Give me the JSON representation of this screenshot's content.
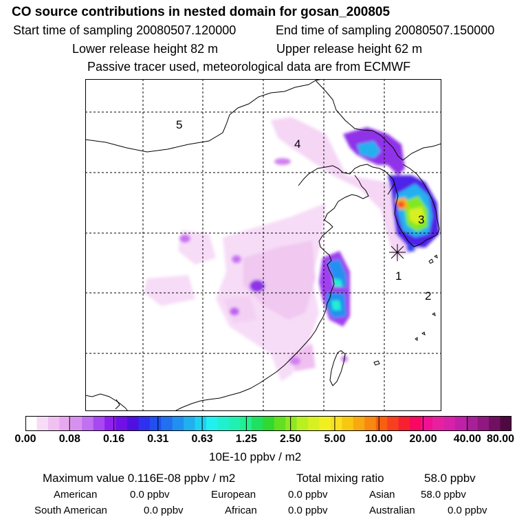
{
  "header": {
    "title": "CO  source contributions in nested domain for gosan_200805",
    "start_time": "Start time of sampling 20080507.120000",
    "end_time": "End time of sampling 20080507.150000",
    "lower_height": "Lower release height   82 m",
    "upper_height": "Upper release height   62 m",
    "note": "Passive tracer used, meteorological data are from ECMWF"
  },
  "map": {
    "region_labels": [
      "5",
      "4",
      "3",
      "1",
      "2"
    ],
    "receptor_marker": "asterisk-star"
  },
  "colorbar": {
    "ticks": [
      "0.00",
      "0.08",
      "0.16",
      "0.31",
      "0.63",
      "1.25",
      "2.50",
      "5.00",
      "10.00",
      "20.00",
      "40.00",
      "80.00"
    ],
    "units": "10E-10 ppbv / m2",
    "colors": [
      "#ffffff",
      "#f7dcf7",
      "#f0c0f0",
      "#e8a8f0",
      "#d890f0",
      "#c070f0",
      "#a848f0",
      "#9020f0",
      "#7010e8",
      "#5010e0",
      "#3030f0",
      "#2050f0",
      "#2070f0",
      "#2090f0",
      "#20b0f0",
      "#20d0f0",
      "#20f0f0",
      "#20f0d0",
      "#20f0b0",
      "#20f090",
      "#20e060",
      "#30d830",
      "#60e020",
      "#90e820",
      "#b8f020",
      "#d8f020",
      "#f0f020",
      "#f8e020",
      "#f8c810",
      "#f8a810",
      "#f88810",
      "#f86010",
      "#f84020",
      "#f82030",
      "#f80860",
      "#f01090",
      "#e820a0",
      "#d820a8",
      "#c020a8",
      "#a82098",
      "#901880",
      "#701060",
      "#500840"
    ]
  },
  "footer": {
    "max_label": "Maximum value  0.116E-08 ppbv / m2",
    "total_label": "Total mixing ratio",
    "total_value": "58.0 ppbv",
    "american_label": "American",
    "american_value": "0.0 ppbv",
    "european_label": "European",
    "european_value": "0.0 ppbv",
    "asian_label": "Asian",
    "asian_value": "58.0 ppbv",
    "south_american_label": "South American",
    "south_american_value": "0.0 ppbv",
    "african_label": "African",
    "african_value": "0.0 ppbv",
    "australian_label": "Australian",
    "australian_value": "0.0 ppbv"
  }
}
